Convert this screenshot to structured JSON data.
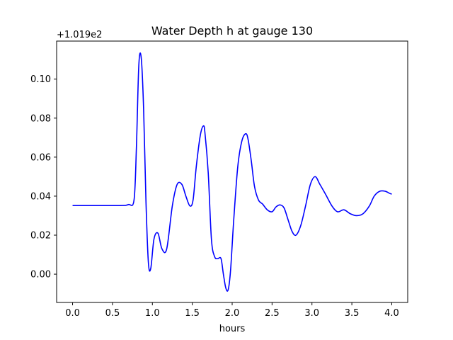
{
  "chart_data": {
    "type": "line",
    "title": "Water Depth h at gauge 130",
    "xlabel": "hours",
    "ylabel": "",
    "y_offset_label": "+1.019e2",
    "xlim": [
      -0.2,
      4.2
    ],
    "ylim": [
      -0.0145,
      0.1195
    ],
    "xticks": [
      0.0,
      0.5,
      1.0,
      1.5,
      2.0,
      2.5,
      3.0,
      3.5,
      4.0
    ],
    "xtick_labels": [
      "0.0",
      "0.5",
      "1.0",
      "1.5",
      "2.0",
      "2.5",
      "3.0",
      "3.5",
      "4.0"
    ],
    "yticks": [
      0.0,
      0.02,
      0.04,
      0.06,
      0.08,
      0.1
    ],
    "ytick_labels": [
      "0.00",
      "0.02",
      "0.04",
      "0.06",
      "0.08",
      "0.10"
    ],
    "grid": false,
    "series": [
      {
        "color": "#0000ff",
        "x": [
          0.0,
          0.3,
          0.6,
          0.7,
          0.77,
          0.8,
          0.83,
          0.86,
          0.89,
          0.92,
          0.95,
          0.98,
          1.02,
          1.07,
          1.12,
          1.18,
          1.25,
          1.31,
          1.37,
          1.42,
          1.47,
          1.51,
          1.55,
          1.6,
          1.64,
          1.66,
          1.7,
          1.74,
          1.78,
          1.82,
          1.86,
          1.89,
          1.92,
          1.95,
          1.98,
          2.02,
          2.07,
          2.12,
          2.17,
          2.2,
          2.24,
          2.28,
          2.33,
          2.38,
          2.44,
          2.5,
          2.55,
          2.6,
          2.65,
          2.7,
          2.75,
          2.8,
          2.86,
          2.92,
          2.98,
          3.04,
          3.1,
          3.17,
          3.25,
          3.32,
          3.4,
          3.48,
          3.56,
          3.64,
          3.72,
          3.78,
          3.85,
          3.92,
          3.97,
          4.0
        ],
        "y": [
          0.0352,
          0.0352,
          0.0352,
          0.0357,
          0.038,
          0.065,
          0.107,
          0.111,
          0.085,
          0.037,
          0.006,
          0.003,
          0.018,
          0.021,
          0.013,
          0.013,
          0.035,
          0.046,
          0.046,
          0.04,
          0.035,
          0.038,
          0.055,
          0.071,
          0.076,
          0.072,
          0.052,
          0.018,
          0.009,
          0.008,
          0.008,
          0.0,
          -0.007,
          -0.008,
          0.002,
          0.028,
          0.055,
          0.068,
          0.072,
          0.069,
          0.058,
          0.045,
          0.038,
          0.036,
          0.033,
          0.032,
          0.0345,
          0.0355,
          0.034,
          0.028,
          0.022,
          0.02,
          0.025,
          0.035,
          0.046,
          0.05,
          0.046,
          0.041,
          0.035,
          0.032,
          0.033,
          0.031,
          0.03,
          0.031,
          0.035,
          0.04,
          0.0425,
          0.0425,
          0.0415,
          0.041
        ]
      }
    ]
  }
}
